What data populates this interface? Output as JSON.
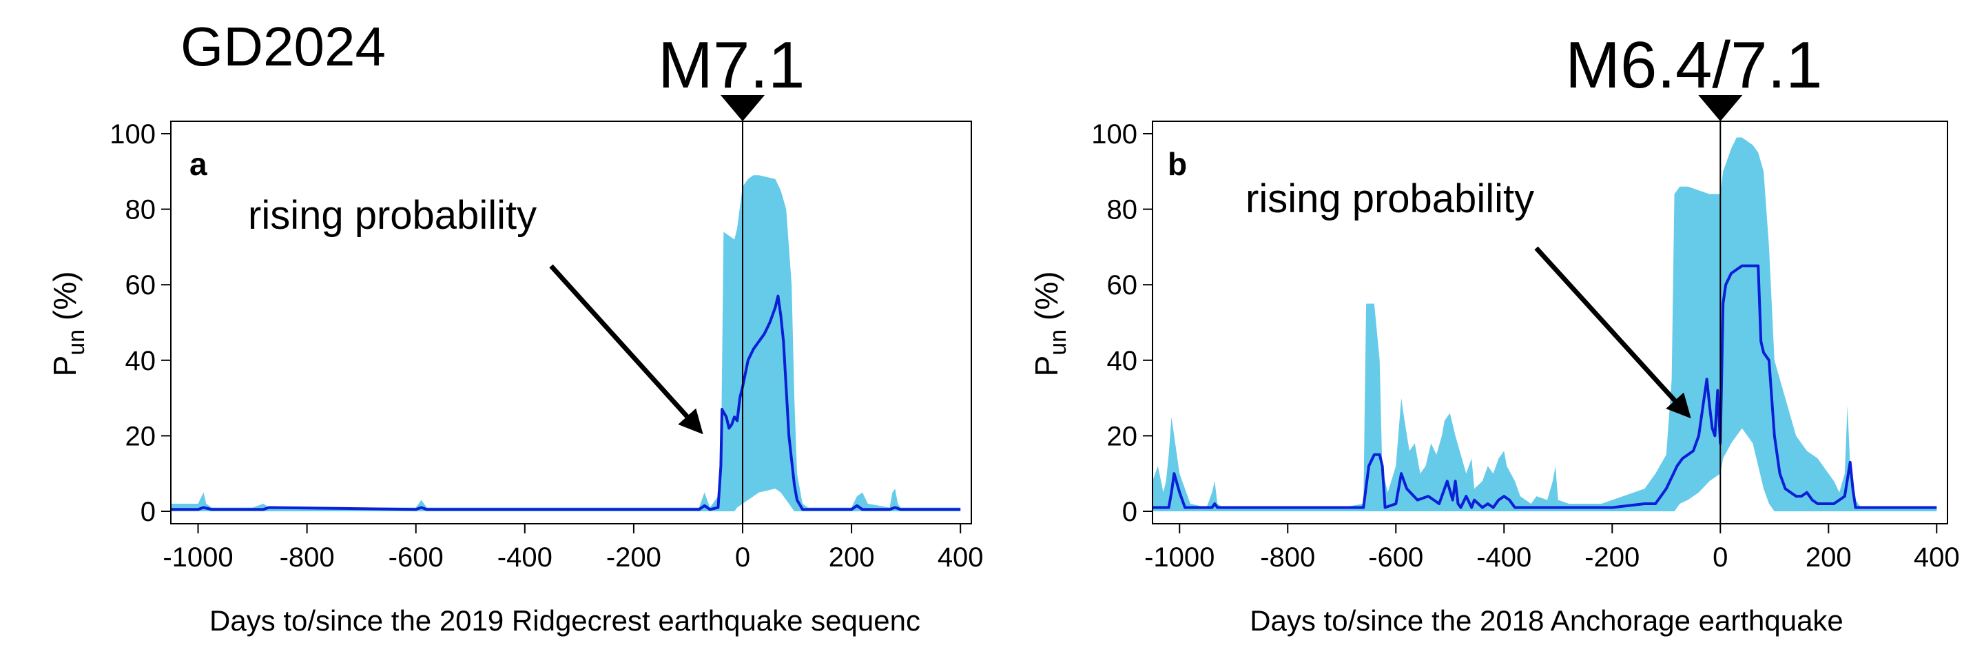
{
  "figure": {
    "header_title": "GD2024",
    "marker_a": "M7.1",
    "marker_b": "M6.4/7.1"
  },
  "chart_data": [
    {
      "type": "area",
      "panel_label": "a",
      "annotation": "rising probability",
      "xlabel": "Days to/since the 2019 Ridgecrest earthquake sequenc",
      "ylabel": "P",
      "ylabel_subscript": "un",
      "ylabel_unit": "(%)",
      "xlim": [
        -1050,
        420
      ],
      "ylim": [
        0,
        100
      ],
      "xticks": [
        -1000,
        -800,
        -600,
        -400,
        -200,
        0,
        200,
        400
      ],
      "yticks": [
        0,
        20,
        40,
        60,
        80,
        100
      ],
      "event_day": 0,
      "colors": {
        "band": "#66cbe9",
        "line": "#0b1fd6",
        "axis": "#000000"
      },
      "band": {
        "x": [
          -1050,
          -1000,
          -990,
          -985,
          -975,
          -900,
          -880,
          -870,
          -600,
          -590,
          -580,
          -400,
          -200,
          -80,
          -70,
          -60,
          -45,
          -40,
          -35,
          -25,
          -15,
          -10,
          0,
          10,
          20,
          30,
          60,
          70,
          80,
          90,
          95,
          100,
          110,
          120,
          200,
          210,
          220,
          230,
          270,
          275,
          280,
          285,
          290,
          400
        ],
        "upper": [
          2,
          2,
          5,
          2,
          1,
          1,
          2,
          1,
          1,
          3,
          1,
          1,
          1,
          1,
          5,
          1,
          4,
          10,
          74,
          73,
          72,
          75,
          86,
          88,
          89,
          89,
          88,
          85,
          80,
          60,
          30,
          10,
          2,
          1,
          1,
          4,
          5,
          2,
          1,
          5,
          6,
          2,
          1,
          1
        ],
        "lower": [
          0,
          0,
          0,
          0,
          0,
          0,
          0,
          0,
          0,
          0,
          0,
          0,
          0,
          0,
          0,
          0,
          0,
          0,
          0,
          0,
          0,
          1,
          2,
          3,
          4,
          5,
          6,
          5,
          3,
          1,
          0,
          0,
          0,
          0,
          0,
          0,
          0,
          0,
          0,
          0,
          0,
          0,
          0,
          0
        ]
      },
      "series": [
        {
          "x": [
            -1050,
            -1000,
            -990,
            -975,
            -880,
            -870,
            -600,
            -590,
            -580,
            -80,
            -70,
            -60,
            -45,
            -40,
            -38,
            -30,
            -25,
            -20,
            -15,
            -10,
            -5,
            0,
            10,
            20,
            30,
            40,
            50,
            60,
            65,
            70,
            75,
            85,
            95,
            100,
            110,
            200,
            210,
            220,
            270,
            280,
            290,
            400
          ],
          "y": [
            0.5,
            0.5,
            1,
            0.5,
            0.5,
            1,
            0.5,
            1,
            0.5,
            0.5,
            1.5,
            0.5,
            1,
            12,
            27,
            25,
            22,
            23,
            25,
            24,
            30,
            33,
            40,
            43,
            45,
            47,
            50,
            54,
            57,
            52,
            45,
            20,
            7,
            3,
            0.5,
            0.5,
            1.5,
            0.5,
            0.5,
            1,
            0.5,
            0.5
          ]
        }
      ]
    },
    {
      "type": "area",
      "panel_label": "b",
      "annotation": "rising probability",
      "xlabel": "Days to/since the 2018 Anchorage earthquake",
      "ylabel": "P",
      "ylabel_subscript": "un",
      "ylabel_unit": "(%)",
      "xlim": [
        -1050,
        420
      ],
      "ylim": [
        0,
        100
      ],
      "xticks": [
        -1000,
        -800,
        -600,
        -400,
        -200,
        0,
        200,
        400
      ],
      "yticks": [
        0,
        20,
        40,
        60,
        80,
        100
      ],
      "event_day": 0,
      "colors": {
        "band": "#66cbe9",
        "line": "#0b1fd6",
        "axis": "#000000"
      },
      "band": {
        "x": [
          -1050,
          -1040,
          -1030,
          -1025,
          -1020,
          -1015,
          -1010,
          -1005,
          -1000,
          -990,
          -980,
          -950,
          -940,
          -935,
          -930,
          -920,
          -700,
          -660,
          -655,
          -650,
          -645,
          -640,
          -630,
          -625,
          -620,
          -615,
          -600,
          -590,
          -585,
          -575,
          -565,
          -555,
          -545,
          -535,
          -525,
          -515,
          -510,
          -500,
          -490,
          -480,
          -470,
          -460,
          -455,
          -440,
          -430,
          -420,
          -410,
          -400,
          -395,
          -380,
          -370,
          -360,
          -350,
          -340,
          -320,
          -310,
          -305,
          -300,
          -280,
          -220,
          -180,
          -140,
          -120,
          -100,
          -90,
          -85,
          -80,
          -75,
          -60,
          -40,
          -20,
          0,
          5,
          20,
          30,
          40,
          50,
          60,
          70,
          80,
          90,
          100,
          110,
          120,
          130,
          140,
          150,
          160,
          170,
          180,
          190,
          200,
          210,
          220,
          230,
          235,
          240,
          245,
          250,
          260,
          400
        ],
        "upper": [
          8,
          12,
          5,
          8,
          15,
          25,
          20,
          15,
          10,
          6,
          2,
          1,
          5,
          8,
          2,
          1,
          1,
          2,
          55,
          55,
          55,
          55,
          40,
          10,
          8,
          5,
          12,
          30,
          25,
          16,
          18,
          10,
          12,
          18,
          15,
          20,
          24,
          26,
          20,
          15,
          10,
          14,
          6,
          8,
          12,
          10,
          14,
          16,
          12,
          8,
          4,
          3,
          2,
          4,
          3,
          8,
          12,
          3,
          2,
          2,
          4,
          6,
          10,
          15,
          35,
          84,
          85,
          86,
          86,
          85,
          84,
          84,
          90,
          96,
          99,
          99,
          98,
          97,
          95,
          90,
          70,
          40,
          35,
          30,
          25,
          20,
          18,
          16,
          15,
          14,
          12,
          10,
          8,
          5,
          10,
          28,
          12,
          5,
          3,
          1,
          1
        ],
        "lower": [
          0,
          0,
          0,
          0,
          0,
          0,
          0,
          0,
          0,
          0,
          0,
          0,
          0,
          0,
          0,
          0,
          0,
          0,
          0,
          0,
          0,
          0,
          0,
          0,
          0,
          0,
          0,
          0,
          0,
          0,
          0,
          0,
          0,
          0,
          0,
          0,
          0,
          0,
          0,
          0,
          0,
          0,
          0,
          0,
          0,
          0,
          0,
          0,
          0,
          0,
          0,
          0,
          0,
          0,
          0,
          0,
          0,
          0,
          0,
          0,
          0,
          0,
          0,
          0,
          0,
          0,
          1,
          2,
          3,
          5,
          8,
          10,
          14,
          18,
          20,
          22,
          20,
          18,
          12,
          6,
          2,
          0,
          0,
          0,
          0,
          0,
          0,
          0,
          0,
          0,
          0,
          0,
          0,
          0,
          0,
          0,
          0,
          0,
          0,
          0,
          0
        ]
      },
      "series": [
        {
          "x": [
            -1050,
            -1020,
            -1015,
            -1010,
            -1000,
            -990,
            -940,
            -935,
            -930,
            -660,
            -650,
            -640,
            -630,
            -625,
            -620,
            -600,
            -590,
            -580,
            -560,
            -540,
            -520,
            -505,
            -495,
            -490,
            -485,
            -480,
            -470,
            -460,
            -455,
            -440,
            -430,
            -420,
            -410,
            -400,
            -390,
            -380,
            -360,
            -340,
            -320,
            -300,
            -280,
            -200,
            -140,
            -120,
            -100,
            -80,
            -70,
            -60,
            -50,
            -40,
            -30,
            -25,
            -20,
            -15,
            -10,
            -5,
            0,
            5,
            10,
            20,
            30,
            40,
            50,
            60,
            70,
            75,
            80,
            90,
            100,
            110,
            120,
            130,
            140,
            150,
            160,
            170,
            180,
            190,
            200,
            210,
            220,
            230,
            240,
            245,
            250,
            260,
            400
          ],
          "y": [
            1,
            1,
            5,
            10,
            5,
            1,
            1,
            2,
            1,
            1,
            12,
            15,
            15,
            12,
            1,
            2,
            10,
            6,
            3,
            4,
            2,
            8,
            3,
            8,
            2,
            1,
            4,
            1,
            3,
            1,
            2,
            1,
            3,
            4,
            3,
            1,
            1,
            1,
            1,
            1,
            1,
            1,
            2,
            2,
            6,
            12,
            14,
            15,
            16,
            20,
            30,
            35,
            28,
            22,
            20,
            32,
            18,
            55,
            60,
            63,
            64,
            65,
            65,
            65,
            65,
            45,
            42,
            40,
            20,
            10,
            6,
            5,
            4,
            4,
            5,
            3,
            2,
            2,
            2,
            2,
            3,
            4,
            13,
            6,
            1,
            1,
            1
          ]
        }
      ]
    }
  ]
}
